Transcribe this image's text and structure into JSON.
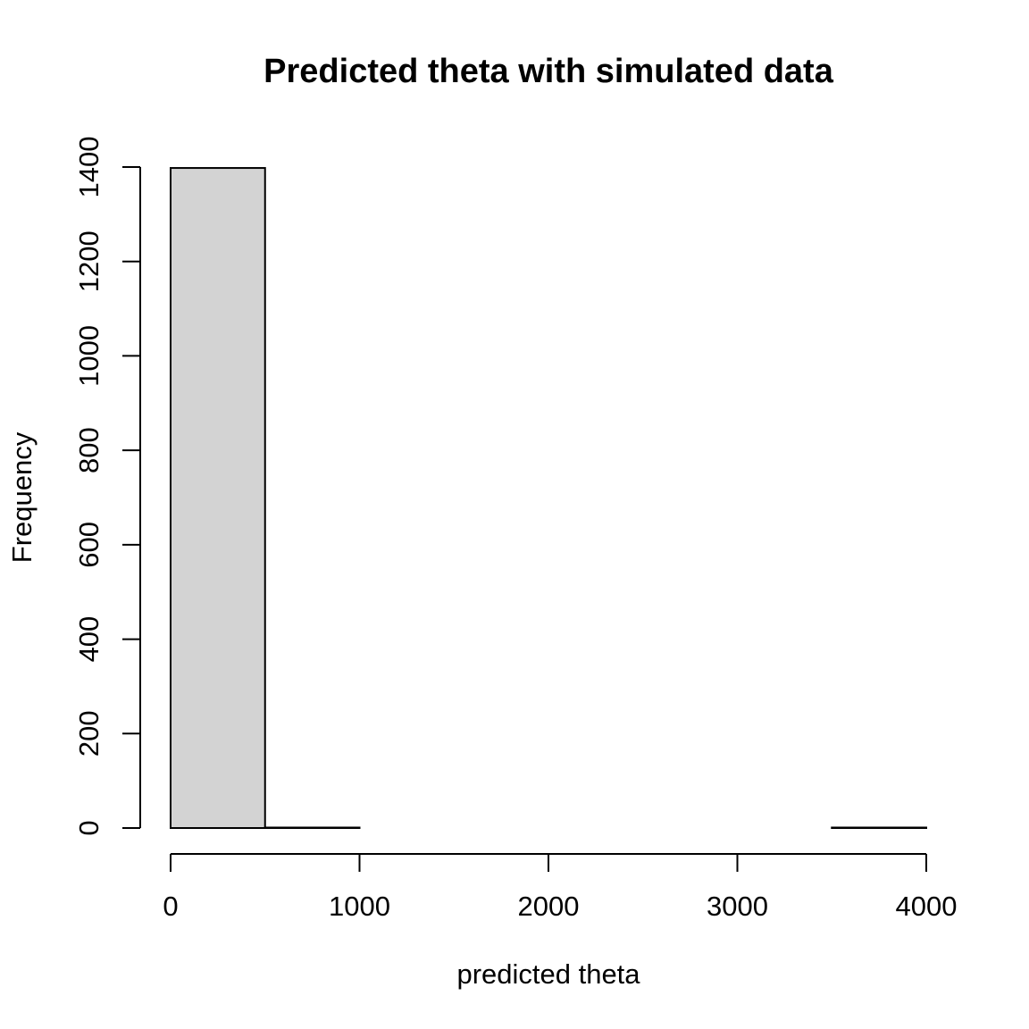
{
  "chart_data": {
    "type": "bar",
    "title": "Predicted theta with simulated data",
    "xlabel": "predicted theta",
    "ylabel": "Frequency",
    "bins": [
      {
        "from": 0,
        "to": 500,
        "count": 1398
      },
      {
        "from": 500,
        "to": 1000,
        "count": 1
      },
      {
        "from": 1000,
        "to": 1500,
        "count": 0
      },
      {
        "from": 1500,
        "to": 2000,
        "count": 0
      },
      {
        "from": 2000,
        "to": 2500,
        "count": 0
      },
      {
        "from": 2500,
        "to": 3000,
        "count": 0
      },
      {
        "from": 3000,
        "to": 3500,
        "count": 0
      },
      {
        "from": 3500,
        "to": 4000,
        "count": 1
      }
    ],
    "xlim": [
      0,
      4000
    ],
    "ylim": [
      0,
      1400
    ],
    "x_ticks": [
      0,
      1000,
      2000,
      3000,
      4000
    ],
    "y_ticks": [
      0,
      200,
      400,
      600,
      800,
      1000,
      1200,
      1400
    ],
    "bar_color": "#d3d3d3",
    "grid": false
  }
}
